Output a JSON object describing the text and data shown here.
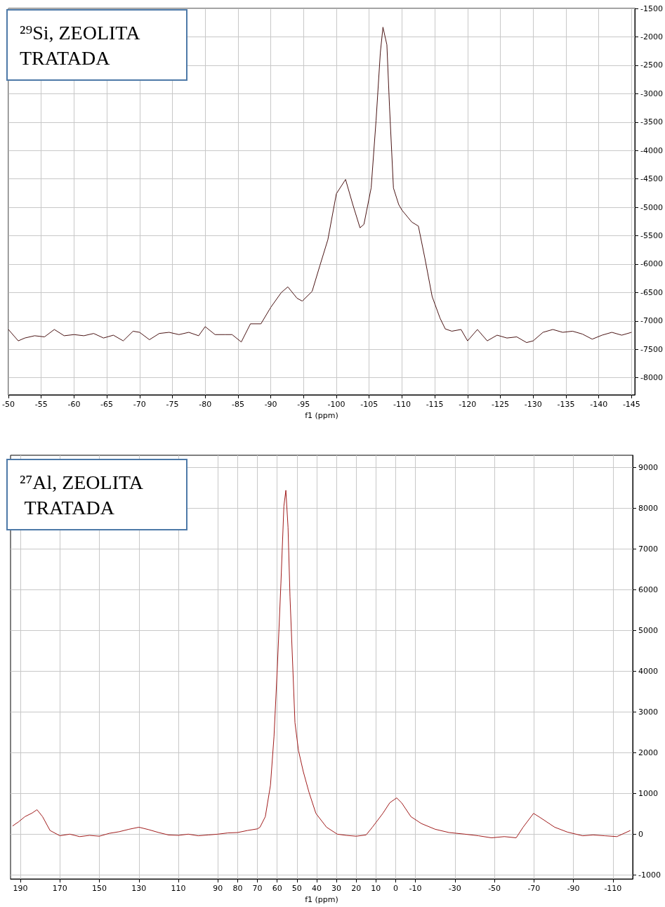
{
  "chart_data": [
    {
      "type": "line",
      "title": "²⁹Si, ZEOLITA TRATADA",
      "xlabel": "f1 (ppm)",
      "xlim": [
        -50,
        -145.5
      ],
      "xticks": [
        -50,
        -55,
        -60,
        -65,
        -70,
        -75,
        -80,
        -85,
        -90,
        -95,
        -100,
        -105,
        -110,
        -115,
        -120,
        -125,
        -130,
        -135,
        -140,
        -145
      ],
      "ylim": [
        -8300,
        -1500
      ],
      "yticks": [
        -1500,
        -2000,
        -2500,
        -3000,
        -3500,
        -4000,
        -4500,
        -5000,
        -5500,
        -6000,
        -6500,
        -7000,
        -7500,
        -8000
      ],
      "grid": true,
      "x": [
        -50,
        -51.5,
        -52.5,
        -54,
        -55.5,
        -57,
        -58.5,
        -60,
        -61.5,
        -63,
        -64.5,
        -66,
        -67.5,
        -69,
        -70,
        -71.5,
        -73,
        -74.5,
        -76,
        -77.5,
        -79,
        -80,
        -81.5,
        -83,
        -84.1,
        -85.5,
        -86.9,
        -88.5,
        -90,
        -91.6,
        -92.6,
        -94,
        -94.8,
        -96.3,
        -97.5,
        -98.7,
        -100,
        -101.4,
        -102.5,
        -103.6,
        -104.2,
        -105.3,
        -106.05,
        -106.7,
        -107.1,
        -107.7,
        -108.1,
        -108.7,
        -109.5,
        -110,
        -111.5,
        -112.5,
        -113.5,
        -114.6,
        -115.8,
        -116.6,
        -117.6,
        -119,
        -120,
        -121.5,
        -123,
        -124.5,
        -126,
        -127.5,
        -129,
        -130,
        -131.5,
        -133,
        -134.5,
        -136,
        -137.5,
        -139,
        -140.5,
        -142,
        -143.5,
        -145
      ],
      "series": [
        {
          "color": "#4a1414",
          "values": [
            -7150,
            -7350,
            -7300,
            -7260,
            -7280,
            -7150,
            -7260,
            -7240,
            -7260,
            -7220,
            -7300,
            -7250,
            -7350,
            -7180,
            -7200,
            -7330,
            -7220,
            -7200,
            -7240,
            -7200,
            -7260,
            -7100,
            -7240,
            -7240,
            -7240,
            -7370,
            -7050,
            -7050,
            -6760,
            -6500,
            -6400,
            -6600,
            -6650,
            -6480,
            -6020,
            -5570,
            -4760,
            -4510,
            -4950,
            -5360,
            -5300,
            -4660,
            -3470,
            -2280,
            -1830,
            -2140,
            -3230,
            -4660,
            -4950,
            -5050,
            -5260,
            -5330,
            -5900,
            -6570,
            -6950,
            -7140,
            -7180,
            -7150,
            -7350,
            -7150,
            -7350,
            -7250,
            -7300,
            -7280,
            -7380,
            -7350,
            -7200,
            -7150,
            -7200,
            -7180,
            -7230,
            -7320,
            -7250,
            -7200,
            -7250,
            -7200
          ]
        }
      ]
    },
    {
      "type": "line",
      "title": "²⁷Al, ZEOLITA TRATADA",
      "xlabel": "f1 (ppm)",
      "xlim": [
        195,
        -120
      ],
      "xticks": [
        190,
        170,
        150,
        130,
        110,
        90,
        80,
        70,
        60,
        50,
        40,
        30,
        20,
        10,
        0,
        -10,
        -30,
        -50,
        -70,
        -90,
        -110
      ],
      "ylim": [
        -1100,
        9300
      ],
      "yticks": [
        -1000,
        0,
        1000,
        2000,
        3000,
        4000,
        5000,
        6000,
        7000,
        8000,
        9000
      ],
      "grid": true,
      "x": [
        194,
        191,
        187.7,
        184,
        181.6,
        178.8,
        175,
        170,
        165,
        160,
        155,
        150,
        145,
        140,
        135,
        130,
        125,
        120,
        115,
        110,
        105,
        100,
        95,
        90,
        85,
        80,
        75,
        70,
        68.7,
        66,
        63.4,
        61.6,
        59.9,
        58.1,
        56.6,
        55.6,
        54.5,
        53.5,
        52.1,
        51,
        49.2,
        46.8,
        43.9,
        40.4,
        35,
        29.6,
        25,
        20,
        15,
        11.8,
        6.5,
        3,
        -0.5,
        -3,
        -7.7,
        -13,
        -20,
        -27,
        -35,
        -42,
        -48.5,
        -55,
        -61,
        -64.5,
        -69.8,
        -73.4,
        -80.5,
        -87,
        -94.7,
        -100,
        -106,
        -112,
        -118.8
      ],
      "series": [
        {
          "color": "#a01c1c",
          "values": [
            200,
            300,
            430,
            520,
            600,
            430,
            90,
            -40,
            0,
            -60,
            -30,
            -50,
            20,
            60,
            120,
            170,
            110,
            40,
            -20,
            -30,
            0,
            -40,
            -20,
            0,
            30,
            40,
            90,
            130,
            170,
            430,
            1200,
            2400,
            4110,
            6160,
            8050,
            8440,
            7530,
            5820,
            4110,
            2740,
            2050,
            1540,
            1030,
            510,
            170,
            0,
            -30,
            -50,
            -20,
            170,
            510,
            770,
            890,
            770,
            430,
            260,
            120,
            40,
            0,
            -40,
            -90,
            -60,
            -90,
            170,
            510,
            400,
            170,
            50,
            -40,
            -20,
            -40,
            -60,
            90
          ]
        }
      ]
    }
  ]
}
